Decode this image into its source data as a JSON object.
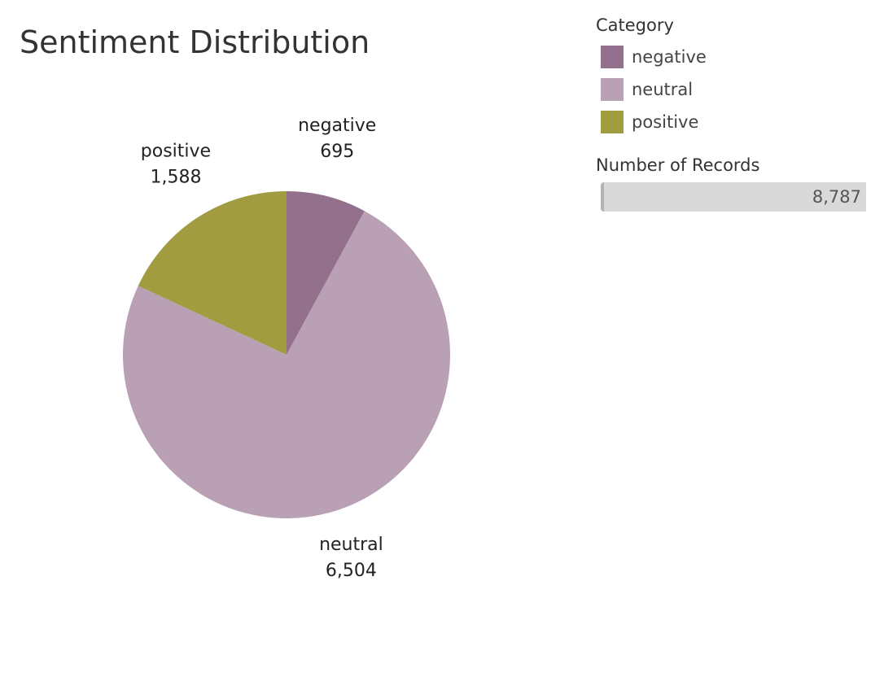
{
  "chart_data": {
    "type": "pie",
    "title": "Sentiment Distribution",
    "legend_title": "Category",
    "legend_position": "top-right",
    "categories": [
      "negative",
      "neutral",
      "positive"
    ],
    "values": [
      695,
      6504,
      1588
    ],
    "value_labels": [
      "695",
      "6,504",
      "1,588"
    ],
    "colors": [
      "#93718c",
      "#baa0b5",
      "#a09c3f"
    ],
    "size_legend": {
      "title": "Number of Records",
      "value": 8787,
      "value_label": "8,787"
    }
  }
}
